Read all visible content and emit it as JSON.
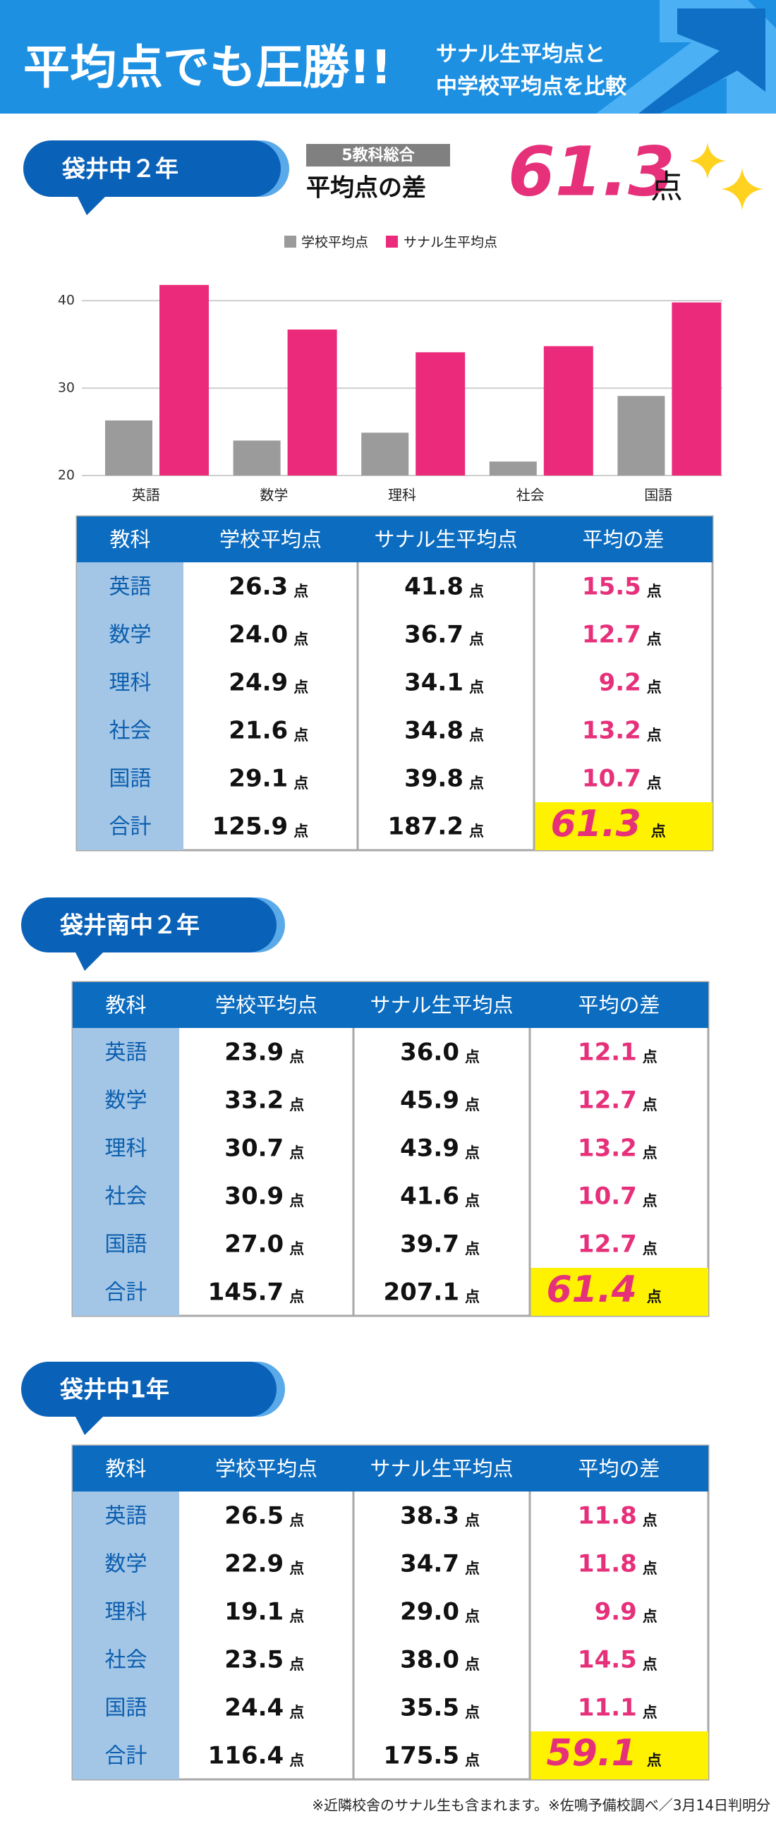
{
  "header": {
    "title": "平均点でも圧勝!!",
    "subtitle_lines": [
      "サナル生平均点と",
      "中学校平均点を比較"
    ]
  },
  "summary": {
    "badge": "袋井中２年",
    "label": "5教科総合",
    "caption": "平均点の差",
    "value": 61.3,
    "unit": "点"
  },
  "chart_data": {
    "type": "bar",
    "categories": [
      "英語",
      "数学",
      "理科",
      "社会",
      "国語"
    ],
    "series": [
      {
        "name": "学校平均点",
        "color": "#9b9b9b",
        "values": [
          26.3,
          24.0,
          24.9,
          21.6,
          29.1
        ]
      },
      {
        "name": "サナル生平均点",
        "color": "#eb2a7b",
        "values": [
          41.8,
          36.7,
          34.1,
          34.8,
          39.8
        ]
      }
    ],
    "ylim": [
      20,
      43
    ],
    "yticks": [
      20,
      30,
      40
    ],
    "grid": true,
    "legend": "top"
  },
  "tables": [
    {
      "columns": [
        "教科",
        "学校平均点",
        "サナル生平均点",
        "平均の差"
      ],
      "unit": "点",
      "rows": [
        [
          "英語",
          "26.3",
          "41.8",
          "15.5"
        ],
        [
          "数学",
          "24.0",
          "36.7",
          "12.7"
        ],
        [
          "理科",
          "24.9",
          "34.1",
          "9.2"
        ],
        [
          "社会",
          "21.6",
          "34.8",
          "13.2"
        ],
        [
          "国語",
          "29.1",
          "39.8",
          "10.7"
        ],
        [
          "合計",
          "125.9",
          "187.2",
          "61.3"
        ]
      ]
    },
    {
      "badge": "袋井南中２年",
      "columns": [
        "教科",
        "学校平均点",
        "サナル生平均点",
        "平均の差"
      ],
      "unit": "点",
      "rows": [
        [
          "英語",
          "23.9",
          "36.0",
          "12.1"
        ],
        [
          "数学",
          "33.2",
          "45.9",
          "12.7"
        ],
        [
          "理科",
          "30.7",
          "43.9",
          "13.2"
        ],
        [
          "社会",
          "30.9",
          "41.6",
          "10.7"
        ],
        [
          "国語",
          "27.0",
          "39.7",
          "12.7"
        ],
        [
          "合計",
          "145.7",
          "207.1",
          "61.4"
        ]
      ]
    },
    {
      "badge": "袋井中1年",
      "columns": [
        "教科",
        "学校平均点",
        "サナル生平均点",
        "平均の差"
      ],
      "unit": "点",
      "rows": [
        [
          "英語",
          "26.5",
          "38.3",
          "11.8"
        ],
        [
          "数学",
          "22.9",
          "34.7",
          "11.8"
        ],
        [
          "理科",
          "19.1",
          "29.0",
          "9.9"
        ],
        [
          "社会",
          "23.5",
          "38.0",
          "14.5"
        ],
        [
          "国語",
          "24.4",
          "35.5",
          "11.1"
        ],
        [
          "合計",
          "116.4",
          "175.5",
          "59.1"
        ]
      ]
    }
  ],
  "footnote": "※近隣校舎のサナル生も含まれます。※佐鳴予備校調べ／3月14日判明分"
}
